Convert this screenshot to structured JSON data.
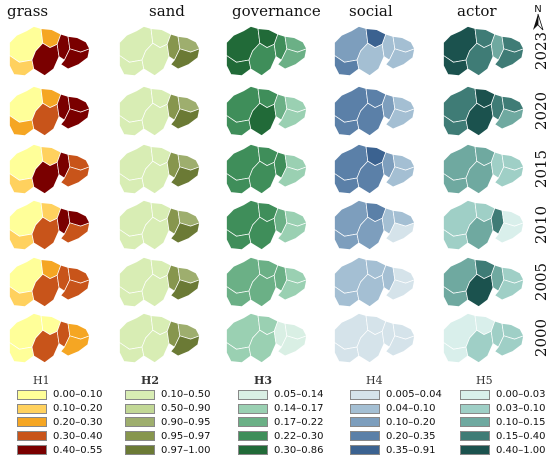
{
  "columns": [
    {
      "key": "grass",
      "title": "grass"
    },
    {
      "key": "sand",
      "title": "sand"
    },
    {
      "key": "governance",
      "title": "governance"
    },
    {
      "key": "social",
      "title": "social"
    },
    {
      "key": "actor",
      "title": "actor"
    }
  ],
  "years": [
    "2023",
    "2020",
    "2015",
    "2010",
    "2005",
    "2000"
  ],
  "north_label": "N",
  "palettes": {
    "grass": [
      "#ffff99",
      "#ffd15e",
      "#f5a623",
      "#c8541a",
      "#7a0000"
    ],
    "sand": [
      "#d8edb4",
      "#c2d896",
      "#9eae6e",
      "#87964e",
      "#6b7a35"
    ],
    "governance": [
      "#d9efe4",
      "#9ad0b2",
      "#6bb086",
      "#3f8e5a",
      "#216a38"
    ],
    "social": [
      "#d5e3ea",
      "#a4bfd3",
      "#7d9ebd",
      "#5b80a8",
      "#3b6290"
    ],
    "actor": [
      "#d9efeb",
      "#9fcfc6",
      "#6fa9a0",
      "#3f7c76",
      "#1b524e"
    ]
  },
  "maps": {
    "grass": [
      [
        0,
        1,
        2,
        4,
        4,
        4,
        4
      ],
      [
        0,
        2,
        2,
        3,
        4,
        4,
        4
      ],
      [
        0,
        1,
        1,
        4,
        4,
        3,
        3
      ],
      [
        0,
        1,
        1,
        3,
        4,
        4,
        3
      ],
      [
        0,
        1,
        2,
        3,
        3,
        3,
        3
      ],
      [
        0,
        0,
        0,
        3,
        3,
        2,
        2
      ]
    ],
    "sand": [
      [
        0,
        0,
        0,
        0,
        3,
        2,
        4
      ],
      [
        0,
        0,
        0,
        0,
        3,
        2,
        4
      ],
      [
        0,
        0,
        0,
        0,
        3,
        2,
        4
      ],
      [
        0,
        0,
        0,
        0,
        3,
        2,
        4
      ],
      [
        0,
        0,
        0,
        0,
        3,
        2,
        4
      ],
      [
        0,
        0,
        0,
        0,
        3,
        2,
        4
      ]
    ],
    "governance": [
      [
        4,
        4,
        4,
        3,
        3,
        2,
        2
      ],
      [
        3,
        3,
        3,
        4,
        2,
        1,
        1
      ],
      [
        3,
        3,
        3,
        3,
        3,
        1,
        1
      ],
      [
        3,
        3,
        3,
        3,
        2,
        1,
        1
      ],
      [
        2,
        2,
        2,
        2,
        2,
        1,
        1
      ],
      [
        1,
        1,
        1,
        1,
        0,
        0,
        0
      ]
    ],
    "social": [
      [
        2,
        3,
        4,
        1,
        1,
        1,
        1
      ],
      [
        3,
        3,
        3,
        3,
        2,
        1,
        1
      ],
      [
        3,
        3,
        4,
        3,
        2,
        1,
        1
      ],
      [
        2,
        2,
        3,
        2,
        1,
        1,
        0
      ],
      [
        1,
        1,
        1,
        1,
        1,
        0,
        0
      ],
      [
        0,
        0,
        0,
        0,
        0,
        0,
        0
      ]
    ],
    "actor": [
      [
        4,
        4,
        3,
        3,
        2,
        3,
        3
      ],
      [
        3,
        3,
        4,
        4,
        3,
        3,
        2
      ],
      [
        2,
        2,
        2,
        2,
        1,
        1,
        1
      ],
      [
        1,
        1,
        1,
        2,
        3,
        0,
        0
      ],
      [
        2,
        2,
        3,
        4,
        2,
        1,
        1
      ],
      [
        0,
        0,
        0,
        1,
        1,
        1,
        1
      ]
    ]
  },
  "legends": [
    {
      "title": "H1",
      "bold": false,
      "palette": "grass",
      "labels": [
        "0.00–0.10",
        "0.10–0.20",
        "0.20–0.30",
        "0.30–0.40",
        "0.40–0.55"
      ]
    },
    {
      "title": "H2",
      "bold": true,
      "palette": "sand",
      "labels": [
        "0.10–0.50",
        "0.50–0.90",
        "0.90–0.95",
        "0.95–0.97",
        "0.97–1.00"
      ]
    },
    {
      "title": "H3",
      "bold": true,
      "palette": "governance",
      "labels": [
        "0.05–0.14",
        "0.14–0.17",
        "0.17–0.22",
        "0.22–0.30",
        "0.30–0.86"
      ]
    },
    {
      "title": "H4",
      "bold": false,
      "palette": "social",
      "labels": [
        "0.005–0.04",
        "0.04–0.10",
        "0.10–0.20",
        "0.20–0.35",
        "0.35–0.91"
      ]
    },
    {
      "title": "H5",
      "bold": false,
      "palette": "actor",
      "labels": [
        "0.00–0.03",
        "0.03–0.10",
        "0.10–0.15",
        "0.15–0.40",
        "0.40–1.00"
      ]
    }
  ]
}
